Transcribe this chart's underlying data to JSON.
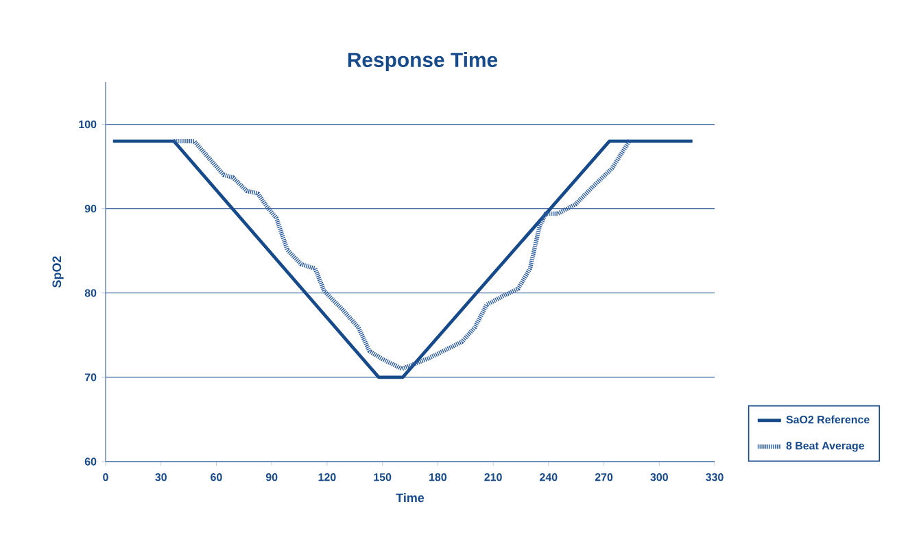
{
  "chart_data": {
    "type": "line",
    "title": "Response Time",
    "xlabel": "Time",
    "ylabel": "SpO2",
    "xlim": [
      0,
      330
    ],
    "xticks": [
      0,
      30,
      60,
      90,
      120,
      150,
      180,
      210,
      240,
      270,
      300,
      330
    ],
    "ylim": [
      60,
      105
    ],
    "yticks": [
      60,
      70,
      80,
      90,
      100
    ],
    "grid": "y",
    "legend": "right",
    "marker": "none",
    "series": [
      {
        "name": "SaO2 Reference",
        "color": "#174a8b",
        "line_style": "solid",
        "x": [
          4,
          37,
          148,
          161,
          273,
          318
        ],
        "values": [
          98,
          98,
          70,
          70,
          98,
          98
        ]
      },
      {
        "name": "8 Beat Average",
        "color": "#2a5a9e",
        "line_style": "dotted",
        "x": [
          37,
          48,
          54,
          64,
          69,
          76.5,
          82.5,
          87.5,
          92.5,
          98.5,
          106,
          113.5,
          118.5,
          128.5,
          137,
          143,
          150.5,
          158,
          160.5,
          175.5,
          193,
          200,
          206.5,
          215,
          223.5,
          230,
          235,
          238.5,
          245,
          254.5,
          264.5,
          274.5,
          284
        ],
        "values": [
          98,
          98,
          96.5,
          94,
          93.7,
          92.1,
          91.8,
          90.2,
          88.9,
          85.1,
          83.4,
          82.9,
          80.2,
          78,
          75.9,
          73.1,
          72.1,
          71.3,
          71,
          72.3,
          74.2,
          75.9,
          78.6,
          79.6,
          80.5,
          82.9,
          87.8,
          89.4,
          89.4,
          90.5,
          92.7,
          94.8,
          98.1
        ]
      }
    ]
  }
}
